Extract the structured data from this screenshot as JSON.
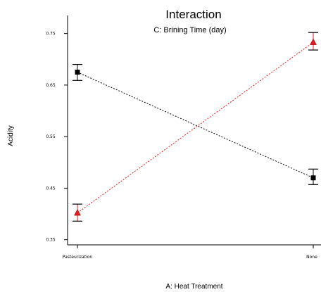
{
  "chart_data": {
    "type": "line",
    "title": "Interaction",
    "subtitle": "C: Brining Time (day)",
    "xlabel": "A: Heat Treatment",
    "ylabel": "Acidity",
    "categories": [
      "Pasteurization",
      "None"
    ],
    "ylim": [
      0.34,
      0.785
    ],
    "yticks": [
      0.35,
      0.45,
      0.55,
      0.65,
      0.75
    ],
    "ytick_labels": [
      "0.35",
      "0.45",
      "0.55",
      "0.65",
      "0.75"
    ],
    "grid": false,
    "legend": "none",
    "series": [
      {
        "marker": "square",
        "color": "#000000",
        "values": [
          0.675,
          0.47
        ],
        "error_low": [
          0.659,
          0.457
        ],
        "error_high": [
          0.69,
          0.487
        ]
      },
      {
        "marker": "triangle",
        "color": "#e41a1c",
        "values": [
          0.402,
          0.733
        ],
        "error_low": [
          0.386,
          0.718
        ],
        "error_high": [
          0.419,
          0.752
        ]
      }
    ]
  }
}
